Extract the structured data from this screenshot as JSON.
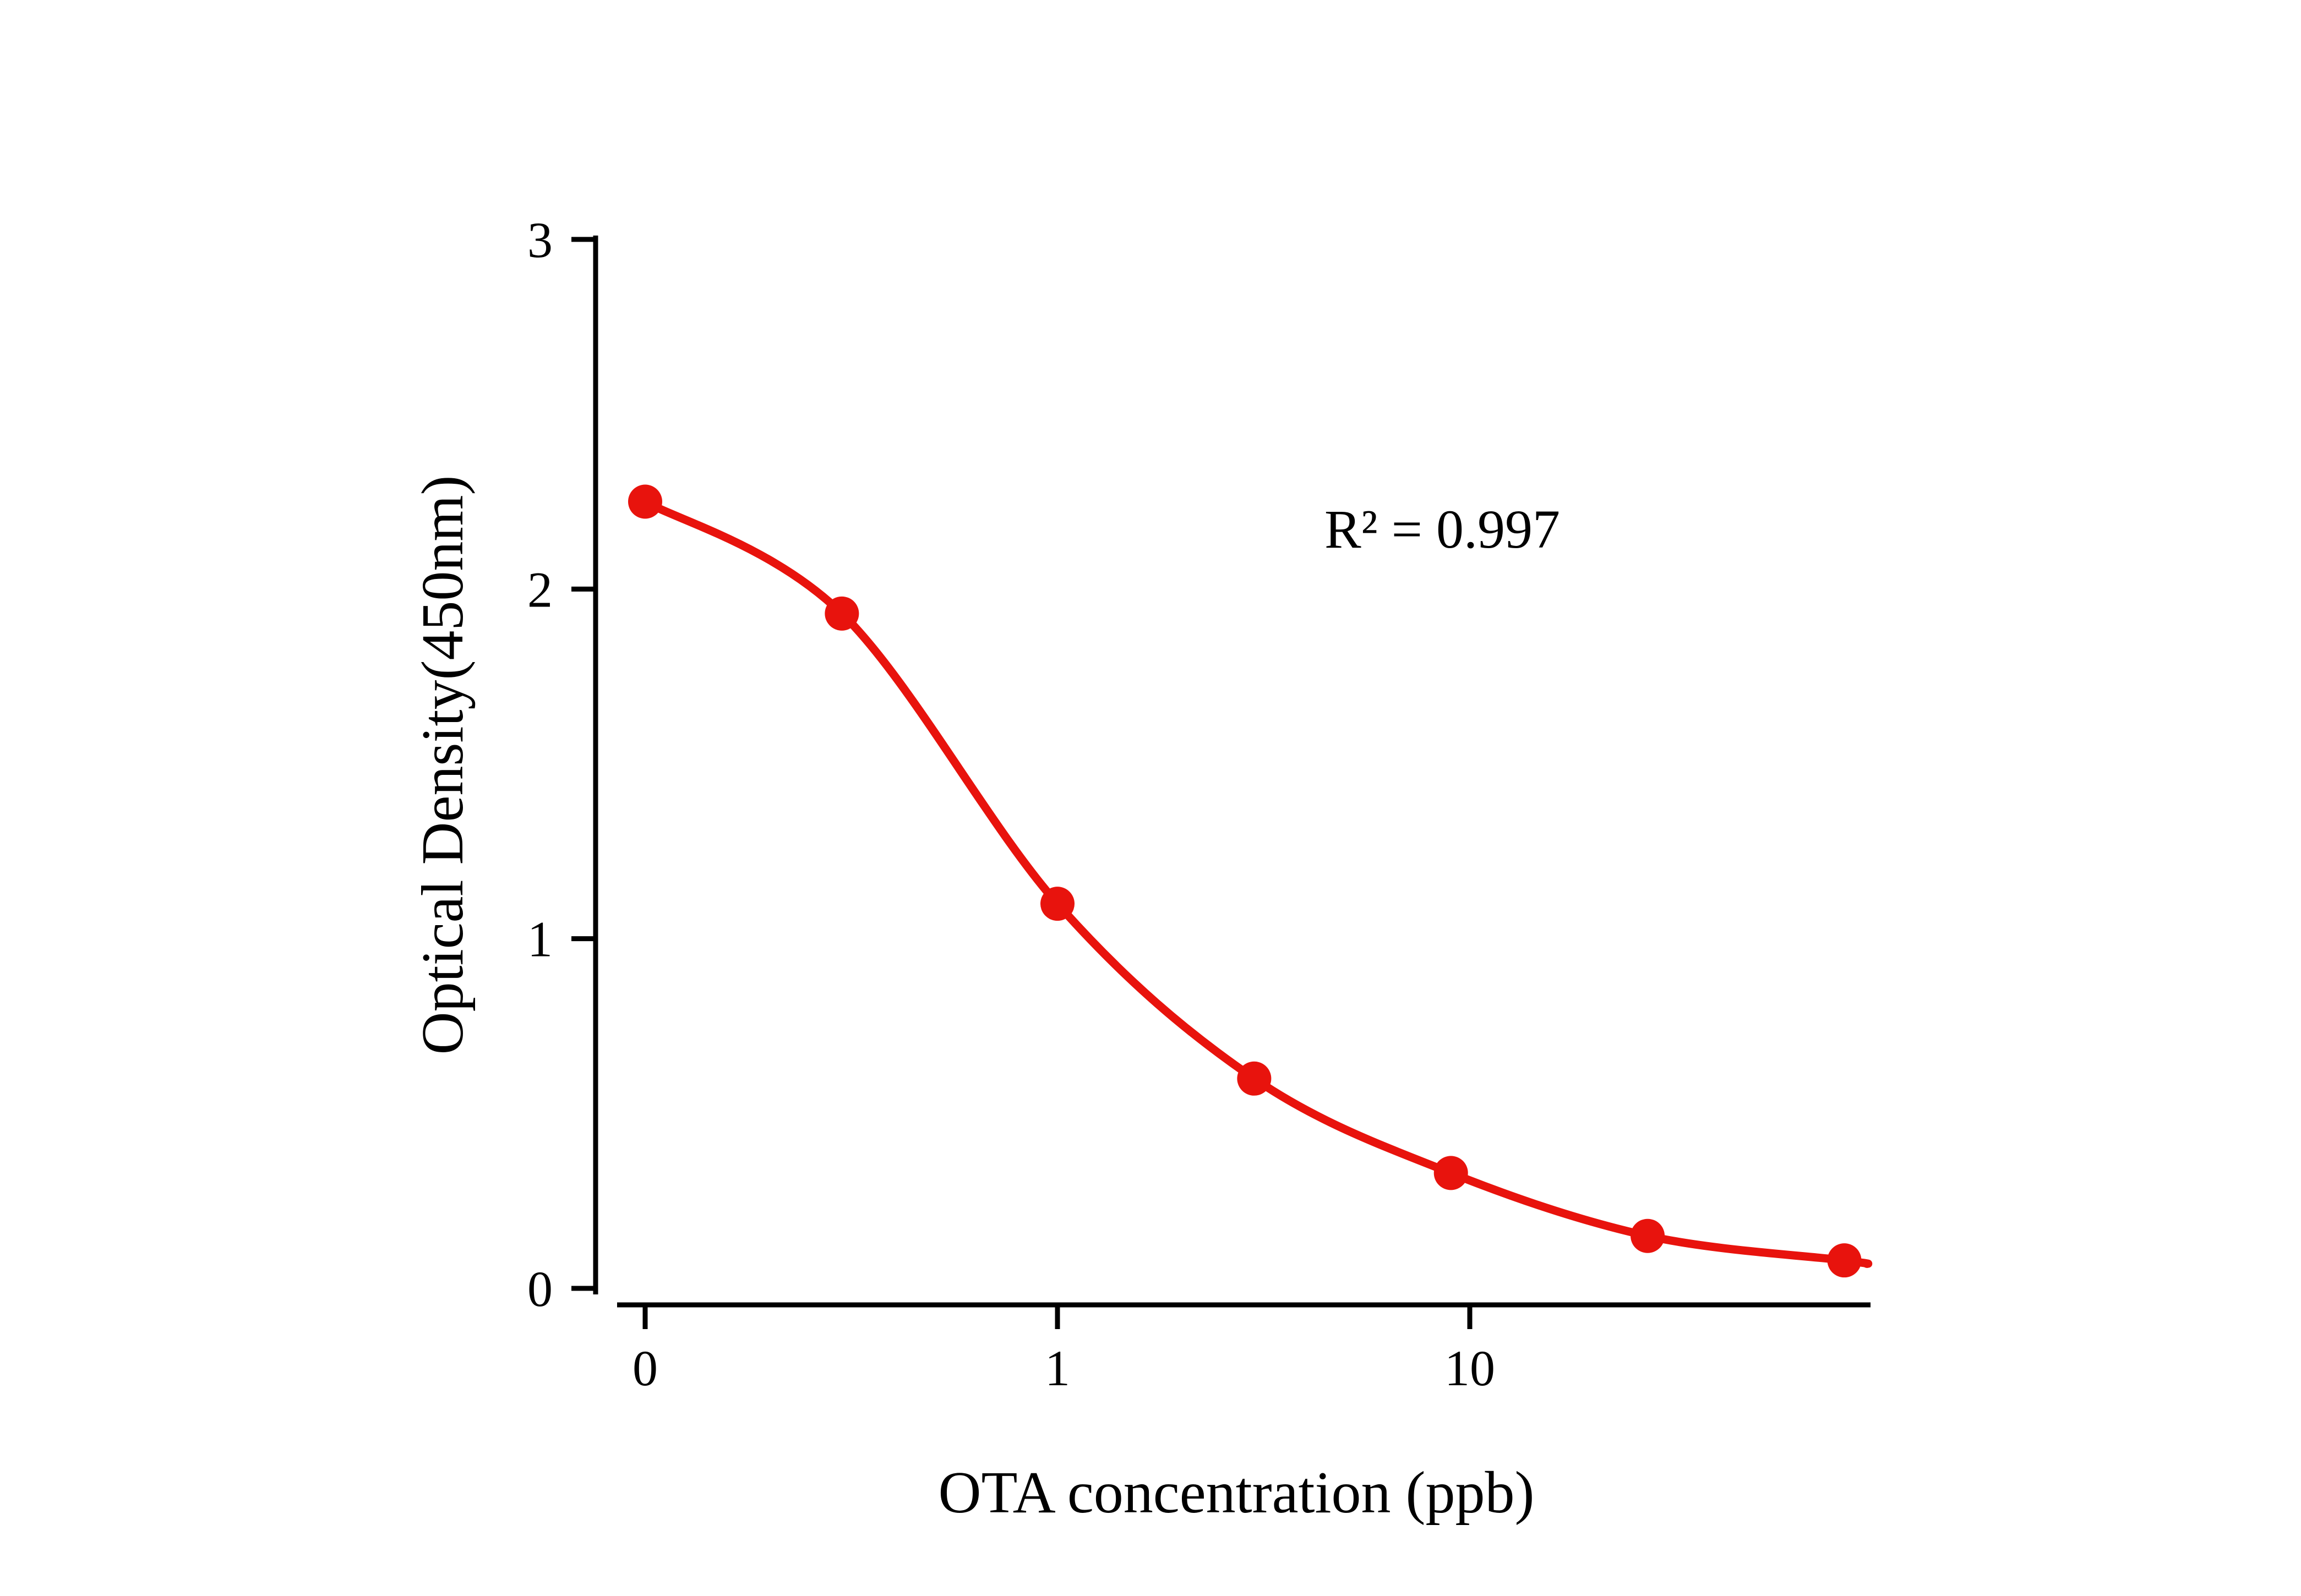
{
  "chart_data": {
    "type": "scatter",
    "subtype": "dose-response standard curve with fitted sigmoid line",
    "x": [
      0,
      0.3,
      1,
      3,
      9,
      27,
      81
    ],
    "y": [
      2.25,
      1.93,
      1.1,
      0.6,
      0.33,
      0.15,
      0.08
    ],
    "title": "",
    "xlabel": "OTA concentration (ppb)",
    "ylabel": "Optical Density(450nm)",
    "annotation": "R² = 0.997",
    "x_scale": "log",
    "x_tick_values": [
      0,
      1,
      10
    ],
    "x_tick_labels": [
      "0",
      "1",
      "10"
    ],
    "y_tick_values": [
      0,
      1,
      2,
      3
    ],
    "y_tick_labels": [
      "0",
      "1",
      "2",
      "3"
    ],
    "ylim": [
      0,
      3
    ],
    "grid": false,
    "legend_position": "none",
    "series_color": "#e8130d",
    "axis_color": "#000000",
    "fit_curve": true
  }
}
